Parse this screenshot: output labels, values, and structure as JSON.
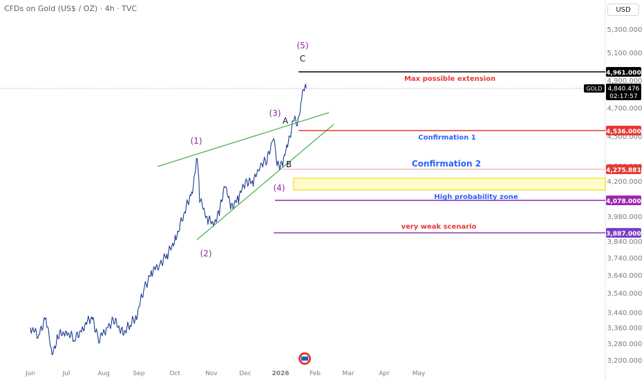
{
  "header": {
    "title": "CFDs on Gold (US$ / OZ) · 4h · TVC",
    "currency_button": "USD"
  },
  "colors": {
    "candle": "#1a3a8f",
    "wedge": "#4caf50",
    "wave_label": "#8e24aa",
    "black_line": "#000000",
    "red_line": "#e53935",
    "purple_line": "#8e24aa",
    "violet_line": "#7b3fc4",
    "zone_fill": "#fffbcc",
    "zone_stroke": "#f5e13b",
    "conf_text": "#2962ff",
    "red_text": "#e53935"
  },
  "chart_data": {
    "type": "line",
    "title": "CFDs on Gold (US$ / OZ) · 4h · TVC",
    "symbol": "GOLD",
    "last_price": "4,840.476",
    "countdown": "02:17:57",
    "x_ticks": [
      "Jun",
      "Jul",
      "Aug",
      "Sep",
      "Oct",
      "Nov",
      "Dec",
      "2026",
      "Feb",
      "Mar",
      "Apr",
      "May"
    ],
    "y_ticks": [
      5300,
      5100,
      4900,
      4700,
      4500,
      4300,
      4200,
      3980,
      3840,
      3740,
      3640,
      3540,
      3440,
      3360,
      3280,
      3200
    ],
    "y_tick_labels": [
      "5,300.000",
      "5,100.000",
      "4,900.000",
      "4,700.000",
      "4,500.000",
      "4,300.000",
      "4,200.000",
      "3,980.000",
      "3,840.000",
      "3,740.000",
      "3,640.000",
      "3,540.000",
      "3,440.000",
      "3,360.000",
      "3,280.000",
      "3,200.000"
    ],
    "price_path": [
      [
        "Jun 1",
        3360
      ],
      [
        "Jun 8",
        3320
      ],
      [
        "Jun 14",
        3420
      ],
      [
        "Jun 19",
        3220
      ],
      [
        "Jun 24",
        3320
      ],
      [
        "Jul 1",
        3340
      ],
      [
        "Jul 8",
        3300
      ],
      [
        "Jul 15",
        3360
      ],
      [
        "Jul 22",
        3420
      ],
      [
        "Jul 28",
        3300
      ],
      [
        "Aug 4",
        3360
      ],
      [
        "Aug 10",
        3400
      ],
      [
        "Aug 18",
        3330
      ],
      [
        "Aug 25",
        3380
      ],
      [
        "Aug 30",
        3420
      ],
      [
        "Sep 5",
        3560
      ],
      [
        "Sep 12",
        3660
      ],
      [
        "Sep 18",
        3700
      ],
      [
        "Sep 25",
        3760
      ],
      [
        "Oct 2",
        3860
      ],
      [
        "Oct 10",
        4020
      ],
      [
        "Oct 16",
        4150
      ],
      [
        "Oct 20",
        4360
      ],
      [
        "Oct 22",
        4100
      ],
      [
        "Oct 27",
        3980
      ],
      [
        "Oct 29",
        3960
      ],
      [
        "Nov 3",
        3940
      ],
      [
        "Nov 8",
        4000
      ],
      [
        "Nov 13",
        4190
      ],
      [
        "Nov 18",
        4030
      ],
      [
        "Nov 25",
        4090
      ],
      [
        "Dec 1",
        4200
      ],
      [
        "Dec 8",
        4190
      ],
      [
        "Dec 14",
        4310
      ],
      [
        "Dec 20",
        4330
      ],
      [
        "Dec 26",
        4510
      ],
      [
        "Dec 29",
        4300
      ],
      [
        "Jan 3",
        4320
      ],
      [
        "Jan 8",
        4460
      ],
      [
        "Jan 13",
        4620
      ],
      [
        "Jan 16",
        4580
      ],
      [
        "Jan 20",
        4760
      ],
      [
        "Jan 23",
        4880
      ],
      [
        "Jan 24",
        4840.476
      ]
    ],
    "levels": [
      {
        "name": "max-extension",
        "value": 4961.0,
        "label": "4,961.000",
        "note": "Max possible extension"
      },
      {
        "name": "confirmation-1",
        "value": 4536.0,
        "label": "4,536.000",
        "note": "Confirmation 1"
      },
      {
        "name": "confirmation-2",
        "value": 4275.881,
        "label": "4,275.881",
        "note": "Confirmation 2"
      },
      {
        "name": "high-probability",
        "value": 4078.0,
        "label": "4,078.000",
        "note": "High probability zone"
      },
      {
        "name": "very-weak",
        "value": 3887.0,
        "label": "3,887.000",
        "note": "very weak scenario"
      }
    ],
    "wave_labels": [
      "(1)",
      "(2)",
      "(3)",
      "(4)",
      "(5)",
      "A",
      "B",
      "C"
    ]
  }
}
